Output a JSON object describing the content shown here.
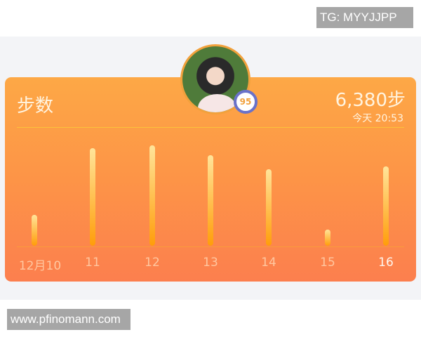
{
  "watermarks": {
    "top": "TG: MYYJJPP",
    "bottom": "www.pfinomann.com"
  },
  "card": {
    "title": "步数",
    "steps": "6,380步",
    "time": "今天 20:53"
  },
  "avatar": {
    "badge": "95",
    "ring_color": "#f2a13c"
  },
  "colors": {
    "card_top": "#fda846",
    "card_bottom": "#fc7f4e",
    "bar_top": "#ffe49a",
    "bar_bottom": "#ff9d0a"
  },
  "chart_data": {
    "type": "bar",
    "categories": [
      "12月10",
      "11",
      "12",
      "13",
      "14",
      "15",
      "16"
    ],
    "values": [
      2480,
      7850,
      8080,
      7290,
      6160,
      1300,
      6380
    ],
    "selected": "16",
    "grid": false
  }
}
